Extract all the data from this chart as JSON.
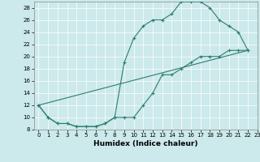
{
  "title": "",
  "xlabel": "Humidex (Indice chaleur)",
  "xlim": [
    -0.5,
    23
  ],
  "ylim": [
    8,
    29
  ],
  "xticks": [
    0,
    1,
    2,
    3,
    4,
    5,
    6,
    7,
    8,
    9,
    10,
    11,
    12,
    13,
    14,
    15,
    16,
    17,
    18,
    19,
    20,
    21,
    22,
    23
  ],
  "yticks": [
    8,
    10,
    12,
    14,
    16,
    18,
    20,
    22,
    24,
    26,
    28
  ],
  "bg_color": "#cce9eb",
  "line_color": "#2e7d6e",
  "upper_curve_x": [
    0,
    1,
    2,
    3,
    4,
    5,
    6,
    7,
    8,
    9,
    10,
    11,
    12,
    13,
    14,
    15,
    16,
    17,
    18,
    19,
    20,
    21,
    22
  ],
  "upper_curve_y": [
    12,
    10,
    9,
    9,
    8.5,
    8.5,
    8.5,
    9,
    10,
    19,
    23,
    25,
    26,
    26,
    27,
    29,
    29,
    29,
    28,
    26,
    25,
    24,
    21
  ],
  "lower_curve_x": [
    0,
    1,
    2,
    3,
    4,
    5,
    6,
    7,
    8,
    9,
    10,
    11,
    12,
    13,
    14,
    15,
    16,
    17,
    18,
    19,
    20,
    21,
    22
  ],
  "lower_curve_y": [
    12,
    10,
    9,
    9,
    8.5,
    8.5,
    8.5,
    9,
    10,
    10,
    10,
    12,
    14,
    17,
    17,
    18,
    19,
    20,
    20,
    20,
    21,
    21,
    21
  ],
  "straight_line_x": [
    0,
    22
  ],
  "straight_line_y": [
    12,
    21
  ],
  "xlabel_fontsize": 6.5,
  "tick_fontsize": 5.0
}
